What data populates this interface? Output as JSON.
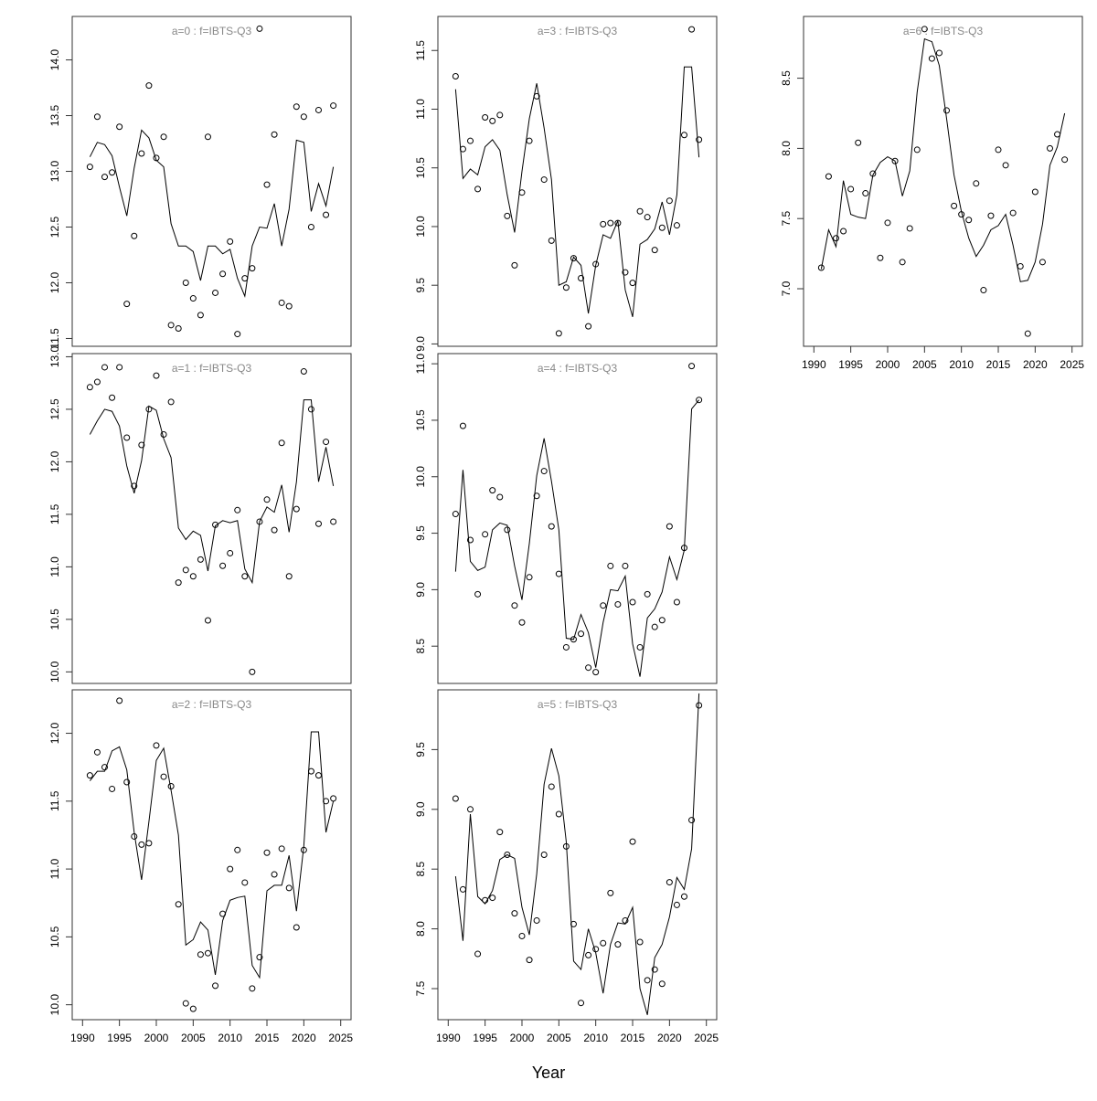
{
  "xlabel": "Year",
  "chart_data": [
    {
      "type": "line",
      "title": "a=0  :  f=IBTS-Q3",
      "x": [
        1991,
        1992,
        1993,
        1994,
        1995,
        1996,
        1997,
        1998,
        1999,
        2000,
        2001,
        2002,
        2003,
        2004,
        2005,
        2006,
        2007,
        2008,
        2009,
        2010,
        2011,
        2012,
        2013,
        2014,
        2015,
        2016,
        2017,
        2018,
        2019,
        2020,
        2021,
        2022,
        2023,
        2024
      ],
      "xlim": [
        1988.6,
        2026.4
      ],
      "ylim": [
        11.43,
        14.39
      ],
      "yticks": [
        11.5,
        {
          "value": 12,
          "label": "12.0"
        },
        12.5,
        {
          "value": 13,
          "label": "13.0"
        },
        13.5,
        {
          "value": 14,
          "label": "14.0"
        }
      ],
      "series": [
        {
          "color": "#000000",
          "marker": "circle",
          "values": [
            13.04,
            13.49,
            12.95,
            12.99,
            13.4,
            11.81,
            12.42,
            13.16,
            13.77,
            13.12,
            13.31,
            11.62,
            11.59,
            12.0,
            11.86,
            11.71,
            13.31,
            11.91,
            12.08,
            12.37,
            11.54,
            12.04,
            12.13,
            14.28,
            12.88,
            13.33,
            11.82,
            11.79,
            13.58,
            13.49,
            12.5,
            13.55,
            12.61,
            13.59
          ]
        },
        {
          "color": "#000000",
          "values": [
            13.13,
            13.26,
            13.24,
            13.14,
            12.86,
            12.6,
            13.03,
            13.37,
            13.3,
            13.1,
            13.04,
            12.53,
            12.33,
            12.33,
            12.28,
            12.02,
            12.33,
            12.33,
            12.26,
            12.3,
            12.04,
            11.88,
            12.33,
            12.5,
            12.49,
            12.71,
            12.33,
            12.66,
            13.28,
            13.26,
            12.64,
            12.89,
            12.69,
            13.04
          ]
        }
      ]
    },
    {
      "type": "line",
      "title": "a=1  :  f=IBTS-Q3",
      "x": [
        1991,
        1992,
        1993,
        1994,
        1995,
        1996,
        1997,
        1998,
        1999,
        2000,
        2001,
        2002,
        2003,
        2004,
        2005,
        2006,
        2007,
        2008,
        2009,
        2010,
        2011,
        2012,
        2013,
        2014,
        2015,
        2016,
        2017,
        2018,
        2019,
        2020,
        2021,
        2022,
        2023,
        2024
      ],
      "xlim": [
        1988.6,
        2026.4
      ],
      "ylim": [
        9.89,
        13.03
      ],
      "yticks": [
        {
          "value": 10,
          "label": "10.0"
        },
        10.5,
        {
          "value": 11,
          "label": "11.0"
        },
        11.5,
        {
          "value": 12,
          "label": "12.0"
        },
        12.5,
        {
          "value": 13,
          "label": "13.0"
        }
      ],
      "series": [
        {
          "color": "#000000",
          "marker": "circle",
          "values": [
            12.71,
            12.76,
            12.9,
            12.61,
            12.9,
            12.23,
            11.77,
            12.16,
            12.5,
            12.82,
            12.26,
            12.57,
            10.85,
            10.97,
            10.91,
            11.07,
            10.49,
            11.4,
            11.01,
            11.13,
            11.54,
            10.91,
            10.0,
            11.43,
            11.64,
            11.35,
            12.18,
            10.91,
            11.55,
            12.86,
            12.5,
            11.41,
            12.19,
            11.43
          ]
        },
        {
          "color": "#000000",
          "values": [
            12.26,
            12.39,
            12.5,
            12.48,
            12.34,
            11.96,
            11.7,
            12.01,
            12.53,
            12.49,
            12.22,
            12.04,
            11.37,
            11.26,
            11.34,
            11.3,
            10.96,
            11.39,
            11.44,
            11.42,
            11.44,
            10.98,
            10.85,
            11.43,
            11.57,
            11.52,
            11.78,
            11.33,
            11.81,
            12.59,
            12.59,
            11.81,
            12.14,
            11.77
          ]
        }
      ]
    },
    {
      "type": "line",
      "title": "a=2  :  f=IBTS-Q3",
      "x": [
        1991,
        1992,
        1993,
        1994,
        1995,
        1996,
        1997,
        1998,
        1999,
        2000,
        2001,
        2002,
        2003,
        2004,
        2005,
        2006,
        2007,
        2008,
        2009,
        2010,
        2011,
        2012,
        2013,
        2014,
        2015,
        2016,
        2017,
        2018,
        2019,
        2020,
        2021,
        2022,
        2023,
        2024
      ],
      "xlim": [
        1988.6,
        2026.4
      ],
      "xticks": [
        1990,
        1995,
        2000,
        2005,
        2010,
        2015,
        2020,
        2025
      ],
      "ylim": [
        9.89,
        12.32
      ],
      "yticks": [
        {
          "value": 10,
          "label": "10.0"
        },
        10.5,
        {
          "value": 11,
          "label": "11.0"
        },
        11.5,
        {
          "value": 12,
          "label": "12.0"
        }
      ],
      "series": [
        {
          "color": "#000000",
          "marker": "circle",
          "values": [
            11.69,
            11.86,
            11.75,
            11.59,
            12.24,
            11.64,
            11.24,
            11.18,
            11.19,
            11.91,
            11.68,
            11.61,
            10.74,
            10.01,
            9.97,
            10.37,
            10.38,
            10.14,
            10.67,
            11.0,
            11.14,
            10.9,
            10.12,
            10.35,
            11.12,
            10.96,
            11.15,
            10.86,
            10.57,
            11.14,
            11.72,
            11.69,
            11.5,
            11.52
          ]
        },
        {
          "color": "#000000",
          "values": [
            11.65,
            11.72,
            11.72,
            11.87,
            11.9,
            11.73,
            11.27,
            10.92,
            11.35,
            11.8,
            11.89,
            11.58,
            11.25,
            10.44,
            10.48,
            10.61,
            10.55,
            10.22,
            10.62,
            10.77,
            10.79,
            10.8,
            10.29,
            10.2,
            10.84,
            10.88,
            10.88,
            11.1,
            10.69,
            11.17,
            12.01,
            12.01,
            11.27,
            11.5
          ]
        }
      ]
    },
    {
      "type": "line",
      "title": "a=3  :  f=IBTS-Q3",
      "x": [
        1991,
        1992,
        1993,
        1994,
        1995,
        1996,
        1997,
        1998,
        1999,
        2000,
        2001,
        2002,
        2003,
        2004,
        2005,
        2006,
        2007,
        2008,
        2009,
        2010,
        2011,
        2012,
        2013,
        2014,
        2015,
        2016,
        2017,
        2018,
        2019,
        2020,
        2021,
        2022,
        2023,
        2024
      ],
      "xlim": [
        1988.6,
        2026.4
      ],
      "ylim": [
        8.98,
        11.79
      ],
      "yticks": [
        {
          "value": 9,
          "label": "9.0"
        },
        9.5,
        {
          "value": 10,
          "label": "10.0"
        },
        10.5,
        {
          "value": 11,
          "label": "11.0"
        },
        11.5
      ],
      "series": [
        {
          "color": "#000000",
          "marker": "circle",
          "values": [
            11.28,
            10.66,
            10.73,
            10.32,
            10.93,
            10.9,
            10.95,
            10.09,
            9.67,
            10.29,
            10.73,
            11.11,
            10.4,
            9.88,
            9.09,
            9.48,
            9.73,
            9.56,
            9.15,
            9.68,
            10.02,
            10.03,
            10.03,
            9.61,
            9.52,
            10.13,
            10.08,
            9.8,
            9.99,
            10.22,
            10.01,
            10.78,
            11.68,
            10.74
          ]
        },
        {
          "color": "#000000",
          "values": [
            11.17,
            10.41,
            10.49,
            10.44,
            10.68,
            10.74,
            10.65,
            10.27,
            9.95,
            10.47,
            10.92,
            11.22,
            10.84,
            10.4,
            9.5,
            9.53,
            9.74,
            9.67,
            9.26,
            9.67,
            9.93,
            9.9,
            10.05,
            9.46,
            9.23,
            9.85,
            9.89,
            9.98,
            10.21,
            9.93,
            10.27,
            11.36,
            11.36,
            10.59
          ]
        }
      ]
    },
    {
      "type": "line",
      "title": "a=4  :  f=IBTS-Q3",
      "x": [
        1991,
        1992,
        1993,
        1994,
        1995,
        1996,
        1997,
        1998,
        1999,
        2000,
        2001,
        2002,
        2003,
        2004,
        2005,
        2006,
        2007,
        2008,
        2009,
        2010,
        2011,
        2012,
        2013,
        2014,
        2015,
        2016,
        2017,
        2018,
        2019,
        2020,
        2021,
        2022,
        2023,
        2024
      ],
      "xlim": [
        1988.6,
        2026.4
      ],
      "ylim": [
        8.17,
        11.09
      ],
      "yticks": [
        8.5,
        {
          "value": 9,
          "label": "9.0"
        },
        9.5,
        {
          "value": 10,
          "label": "10.0"
        },
        10.5,
        {
          "value": 11,
          "label": "11.0"
        }
      ],
      "series": [
        {
          "color": "#000000",
          "marker": "circle",
          "values": [
            9.67,
            10.45,
            9.44,
            8.96,
            9.49,
            9.88,
            9.82,
            9.53,
            8.86,
            8.71,
            9.11,
            9.83,
            10.05,
            9.56,
            9.14,
            8.49,
            8.56,
            8.61,
            8.31,
            8.27,
            8.86,
            9.21,
            8.87,
            9.21,
            8.89,
            8.49,
            8.96,
            8.67,
            8.73,
            9.56,
            8.89,
            9.37,
            10.98,
            10.68
          ]
        },
        {
          "color": "#000000",
          "values": [
            9.16,
            10.06,
            9.25,
            9.17,
            9.2,
            9.53,
            9.59,
            9.57,
            9.21,
            8.91,
            9.41,
            10.01,
            10.34,
            9.96,
            9.53,
            8.57,
            8.56,
            8.78,
            8.62,
            8.31,
            8.71,
            9.0,
            8.99,
            9.12,
            8.52,
            8.23,
            8.75,
            8.83,
            8.98,
            9.29,
            9.09,
            9.35,
            10.6,
            10.68
          ]
        }
      ]
    },
    {
      "type": "line",
      "title": "a=5  :  f=IBTS-Q3",
      "x": [
        1991,
        1992,
        1993,
        1994,
        1995,
        1996,
        1997,
        1998,
        1999,
        2000,
        2001,
        2002,
        2003,
        2004,
        2005,
        2006,
        2007,
        2008,
        2009,
        2010,
        2011,
        2012,
        2013,
        2014,
        2015,
        2016,
        2017,
        2018,
        2019,
        2020,
        2021,
        2022,
        2023,
        2024
      ],
      "xlim": [
        1988.6,
        2026.4
      ],
      "xticks": [
        1990,
        1995,
        2000,
        2005,
        2010,
        2015,
        2020,
        2025
      ],
      "ylim": [
        7.24,
        10.0
      ],
      "yticks": [
        7.5,
        {
          "value": 8,
          "label": "8.0"
        },
        8.5,
        {
          "value": 9,
          "label": "9.0"
        },
        9.5
      ],
      "series": [
        {
          "color": "#000000",
          "marker": "circle",
          "values": [
            9.09,
            8.33,
            9.0,
            7.79,
            8.24,
            8.26,
            8.81,
            8.62,
            8.13,
            7.94,
            7.74,
            8.07,
            8.62,
            9.19,
            8.96,
            8.69,
            8.04,
            7.38,
            7.78,
            7.83,
            7.88,
            8.3,
            7.87,
            8.07,
            8.73,
            7.89,
            7.57,
            7.66,
            7.54,
            8.39,
            8.2,
            8.27,
            8.91,
            9.87
          ]
        },
        {
          "color": "#000000",
          "values": [
            8.44,
            7.9,
            8.96,
            8.27,
            8.21,
            8.32,
            8.58,
            8.62,
            8.59,
            8.18,
            7.95,
            8.46,
            9.21,
            9.51,
            9.28,
            8.73,
            7.73,
            7.66,
            8.0,
            7.8,
            7.46,
            7.87,
            8.05,
            8.04,
            8.18,
            7.5,
            7.28,
            7.76,
            7.87,
            8.1,
            8.43,
            8.33,
            8.67,
            9.97
          ]
        }
      ]
    },
    {
      "type": "line",
      "title": "a=6  :  f=IBTS-Q3",
      "x": [
        1991,
        1992,
        1993,
        1994,
        1995,
        1996,
        1997,
        1998,
        1999,
        2000,
        2001,
        2002,
        2003,
        2004,
        2005,
        2006,
        2007,
        2008,
        2009,
        2010,
        2011,
        2012,
        2013,
        2014,
        2015,
        2016,
        2017,
        2018,
        2019,
        2020,
        2021,
        2022,
        2023,
        2024
      ],
      "xlim": [
        1988.6,
        2026.4
      ],
      "xticks": [
        1990,
        1995,
        2000,
        2005,
        2010,
        2015,
        2020,
        2025
      ],
      "ylim": [
        6.59,
        8.94
      ],
      "yticks": [
        {
          "value": 7,
          "label": "7.0"
        },
        7.5,
        {
          "value": 8,
          "label": "8.0"
        },
        8.5
      ],
      "series": [
        {
          "color": "#000000",
          "marker": "circle",
          "values": [
            7.15,
            7.8,
            7.36,
            7.41,
            7.71,
            8.04,
            7.68,
            7.82,
            7.22,
            7.47,
            7.91,
            7.19,
            7.43,
            7.99,
            8.85,
            8.64,
            8.68,
            8.27,
            7.59,
            7.53,
            7.49,
            7.75,
            6.99,
            7.52,
            7.99,
            7.88,
            7.54,
            7.16,
            6.68,
            7.69,
            7.19,
            8.0,
            8.1,
            7.92
          ]
        },
        {
          "color": "#000000",
          "values": [
            7.14,
            7.42,
            7.3,
            7.77,
            7.53,
            7.51,
            7.5,
            7.81,
            7.9,
            7.94,
            7.91,
            7.66,
            7.84,
            8.4,
            8.78,
            8.76,
            8.59,
            8.21,
            7.81,
            7.55,
            7.36,
            7.23,
            7.31,
            7.42,
            7.45,
            7.53,
            7.31,
            7.05,
            7.06,
            7.19,
            7.46,
            7.88,
            8.01,
            8.25
          ]
        }
      ]
    }
  ]
}
